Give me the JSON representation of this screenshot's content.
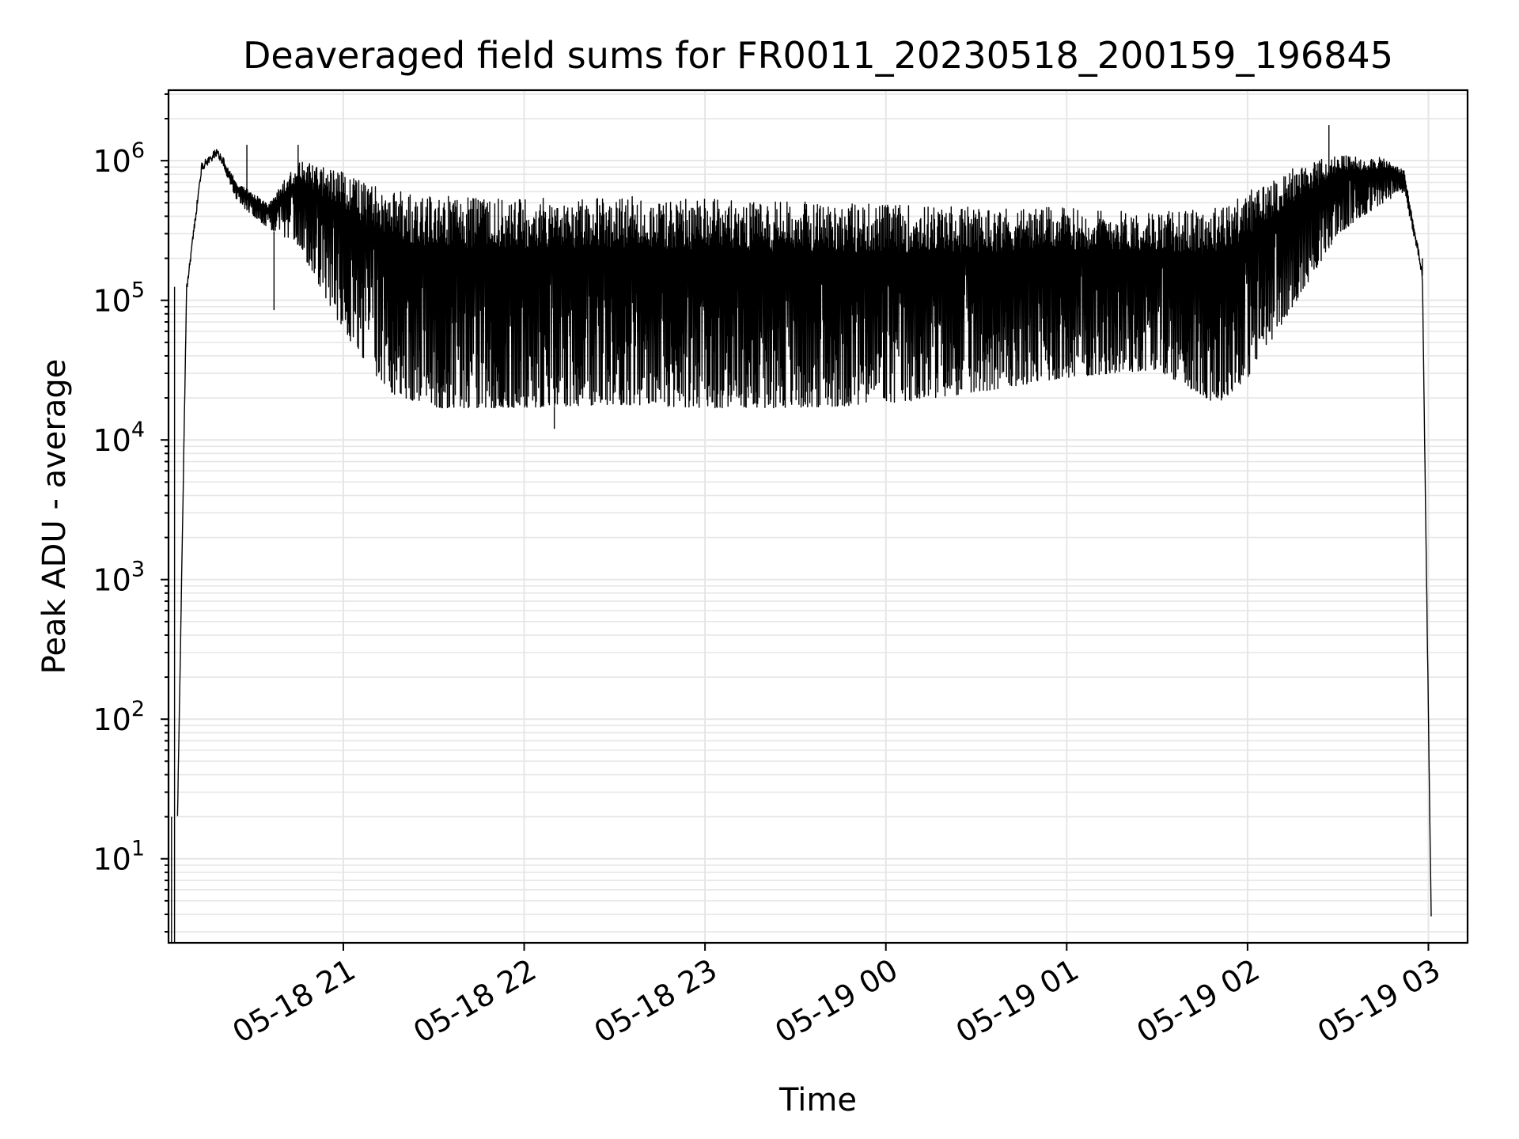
{
  "chart_data": {
    "type": "line",
    "title": "Deaveraged field sums for FR0011_20230518_200159_196845",
    "xlabel": "Time",
    "ylabel": "Peak ADU - average",
    "y_scale": "log",
    "ylim": [
      2.5,
      3200000
    ],
    "xlim": [
      "2023-05-18 20:02",
      "2023-05-19 03:13"
    ],
    "grid": true,
    "x_ticks": [
      {
        "value": "2023-05-18 21:00",
        "label": "05-18 21"
      },
      {
        "value": "2023-05-18 22:00",
        "label": "05-18 22"
      },
      {
        "value": "2023-05-18 23:00",
        "label": "05-18 23"
      },
      {
        "value": "2023-05-19 00:00",
        "label": "05-19 00"
      },
      {
        "value": "2023-05-19 01:00",
        "label": "05-19 01"
      },
      {
        "value": "2023-05-19 02:00",
        "label": "05-19 02"
      },
      {
        "value": "2023-05-19 03:00",
        "label": "05-19 03"
      }
    ],
    "y_ticks": [
      {
        "value": 10,
        "base": "10",
        "exp": "1"
      },
      {
        "value": 100,
        "base": "10",
        "exp": "2"
      },
      {
        "value": 1000,
        "base": "10",
        "exp": "3"
      },
      {
        "value": 10000,
        "base": "10",
        "exp": "4"
      },
      {
        "value": 100000,
        "base": "10",
        "exp": "5"
      },
      {
        "value": 1000000,
        "base": "10",
        "exp": "6"
      }
    ],
    "series": [
      {
        "line_color": "#000000",
        "envelope": {
          "x": [
            "2023-05-18 20:05",
            "2023-05-18 20:08",
            "2023-05-18 20:13",
            "2023-05-18 20:18",
            "2023-05-18 20:25",
            "2023-05-18 20:35",
            "2023-05-18 20:45",
            "2023-05-18 21:00",
            "2023-05-18 21:15",
            "2023-05-18 21:30",
            "2023-05-18 22:00",
            "2023-05-18 22:30",
            "2023-05-18 23:00",
            "2023-05-18 23:30",
            "2023-05-19 00:00",
            "2023-05-19 00:30",
            "2023-05-19 01:00",
            "2023-05-19 01:30",
            "2023-05-19 01:50",
            "2023-05-19 02:00",
            "2023-05-19 02:15",
            "2023-05-19 02:30",
            "2023-05-19 02:45",
            "2023-05-19 02:52",
            "2023-05-19 02:58",
            "2023-05-19 03:01"
          ],
          "upper": [
            20,
            120000,
            900000,
            1150000,
            700000,
            500000,
            1000000,
            850000,
            620000,
            560000,
            540000,
            560000,
            530000,
            520000,
            490000,
            470000,
            460000,
            430000,
            460000,
            600000,
            900000,
            1100000,
            1050000,
            850000,
            150000,
            3
          ],
          "lower": [
            20,
            120000,
            900000,
            1150000,
            500000,
            330000,
            250000,
            60000,
            22000,
            17000,
            17000,
            18000,
            17000,
            17000,
            18000,
            22000,
            28000,
            32000,
            18000,
            28000,
            90000,
            300000,
            500000,
            600000,
            150000,
            3
          ]
        },
        "spikes": [
          {
            "x": "2023-05-18 20:03",
            "y": 2.5
          },
          {
            "x": "2023-05-18 20:04",
            "y": 125000
          },
          {
            "x": "2023-05-18 20:04",
            "y": 2.5
          },
          {
            "x": "2023-05-18 20:37",
            "y": 85000
          },
          {
            "x": "2023-05-18 20:28",
            "y": 1300000
          },
          {
            "x": "2023-05-18 20:45",
            "y": 1300000
          },
          {
            "x": "2023-05-18 22:10",
            "y": 12000
          },
          {
            "x": "2023-05-19 02:27",
            "y": 1800000
          },
          {
            "x": "2023-05-19 02:58",
            "y": 200000
          }
        ]
      }
    ]
  }
}
